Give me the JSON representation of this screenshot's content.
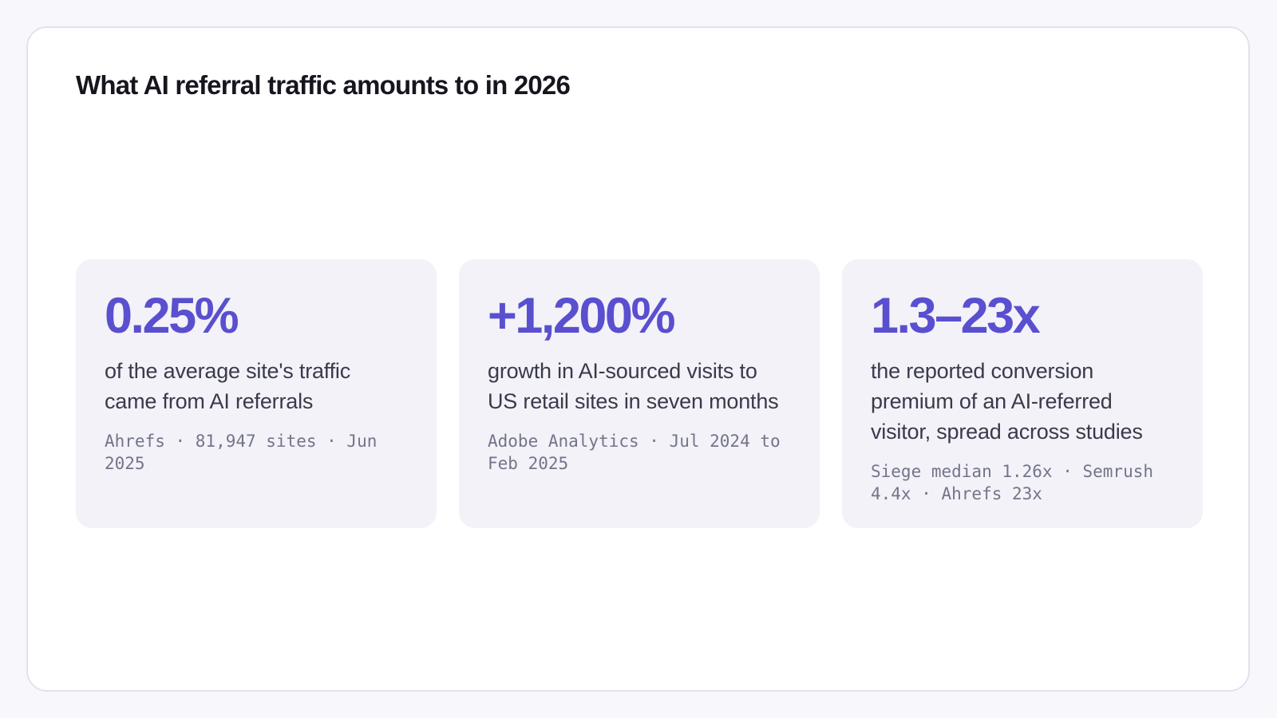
{
  "panel": {
    "title": "What AI referral traffic amounts to in 2026"
  },
  "stats": [
    {
      "value": "0.25%",
      "label": "of the average site's traffic came from AI referrals",
      "source": "Ahrefs · 81,947 sites · Jun 2025"
    },
    {
      "value": "+1,200%",
      "label": "growth in AI-sourced visits to US retail sites in seven months",
      "source": "Adobe Analytics · Jul 2024 to Feb 2025"
    },
    {
      "value": "1.3–23x",
      "label": "the reported conversion premium of an AI-referred visitor, spread across studies",
      "source": "Siege median 1.26x · Semrush 4.4x · Ahrefs 23x"
    }
  ],
  "colors": {
    "accent": "#5a4fcf",
    "card_background": "#f2f2f8",
    "page_background": "#f8f8fc"
  }
}
